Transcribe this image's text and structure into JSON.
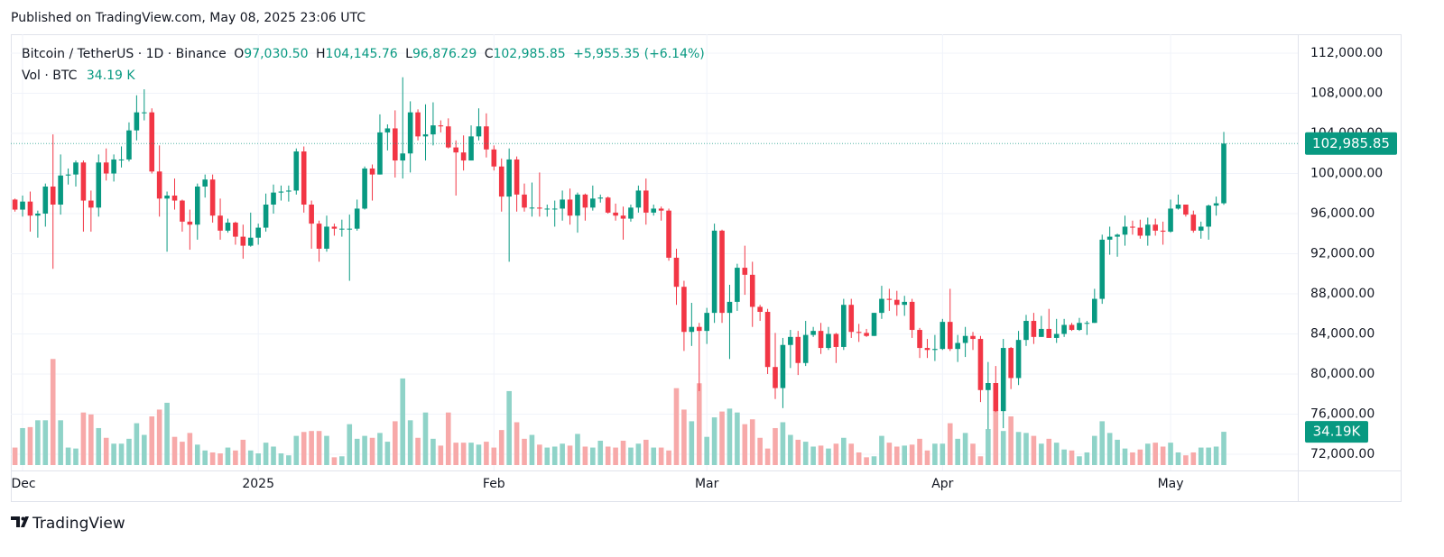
{
  "published": "Published on TradingView.com, May 08, 2025 23:06 UTC",
  "header": {
    "symbol": "Bitcoin / TetherUS · 1D · Binance",
    "o": "O",
    "open": "97,030.50",
    "h": "H",
    "high": "104,145.76",
    "l": "L",
    "low": "96,876.29",
    "c": "C",
    "close": "102,985.85",
    "change": "+5,955.35 (+6.14%)",
    "vol": "Vol · BTC",
    "volume": "34.19 K"
  },
  "volume_axis_label": "34.19K",
  "footer": {
    "brand": "TradingView"
  },
  "chart_data": {
    "type": "candlestick",
    "up_color": "#089981",
    "down_color": "#f23645",
    "up_volume_color": "#8fd3c8",
    "down_volume_color": "#f7a9a9",
    "grid": true,
    "ylim": [
      70380,
      113890
    ],
    "yticks": [
      {
        "value": 72000,
        "label": "72,000.00"
      },
      {
        "value": 76000,
        "label": "76,000.00"
      },
      {
        "value": 80000,
        "label": "80,000.00"
      },
      {
        "value": 84000,
        "label": "84,000.00"
      },
      {
        "value": 88000,
        "label": "88,000.00"
      },
      {
        "value": 92000,
        "label": "92,000.00"
      },
      {
        "value": 96000,
        "label": "96,000.00"
      },
      {
        "value": 100000,
        "label": "100,000.00"
      },
      {
        "value": 104000,
        "label": "104,000.00"
      },
      {
        "value": 108000,
        "label": "108,000.00"
      },
      {
        "value": 112000,
        "label": "112,000.00"
      }
    ],
    "volume_lim": [
      0,
      200
    ],
    "xticks": [
      {
        "value": 1,
        "label": "Dec"
      },
      {
        "value": 32,
        "label": "2025"
      },
      {
        "value": 63,
        "label": "Feb"
      },
      {
        "value": 91,
        "label": "Mar"
      },
      {
        "value": 122,
        "label": "Apr"
      },
      {
        "value": 152,
        "label": "May"
      }
    ],
    "open": [
      97400,
      96400,
      97200,
      95800,
      96000,
      98700,
      96900,
      99800,
      99900,
      101100,
      97300,
      96600,
      101100,
      100000,
      101400,
      101400,
      104300,
      106100,
      106100,
      100200,
      97500,
      97800,
      97300,
      95200,
      94900,
      98700,
      99400,
      95800,
      94300,
      95100,
      93700,
      92800,
      93600,
      94600,
      96900,
      98100,
      98200,
      98300,
      102200,
      96900,
      95000,
      92500,
      94700,
      94500,
      94500,
      94500,
      96500,
      100500,
      99900,
      104100,
      104500,
      101300,
      102000,
      106100,
      103700,
      103900,
      104800,
      104700,
      102600,
      102100,
      101300,
      103700,
      104700,
      102400,
      100700,
      97700,
      101400,
      97900,
      96600,
      96600,
      96500,
      96500,
      96500,
      97400,
      95800,
      97900,
      96600,
      97500,
      97600,
      96100,
      95800,
      95500,
      96600,
      98300,
      96100,
      96500,
      96300,
      91600,
      88700,
      84200,
      84700,
      84300,
      86100,
      94300,
      86100,
      87200,
      90600,
      89900,
      86700,
      86200,
      80700,
      78600,
      82900,
      83700,
      81100,
      83900,
      84300,
      82600,
      84000,
      82700,
      86900,
      84200,
      84100,
      83800,
      86100,
      87500,
      87400,
      86900,
      87200,
      84400,
      82600,
      82400,
      82500,
      85200,
      82500,
      83100,
      83800,
      83500,
      78400,
      79100,
      76300,
      82600,
      79600,
      83400,
      85300,
      83700,
      84500,
      83600,
      84000,
      84900,
      84400,
      85100,
      85100,
      87500,
      93400,
      93700,
      93900,
      94700,
      94600,
      93800,
      94900,
      94300,
      94200,
      96500,
      96900,
      95900,
      94300,
      94700,
      96800,
      97030.5
    ],
    "high": [
      97500,
      97800,
      98200,
      96300,
      99000,
      103900,
      101900,
      100500,
      101300,
      101300,
      98300,
      101900,
      102500,
      101900,
      102700,
      105100,
      107800,
      108400,
      106500,
      102800,
      98200,
      99500,
      97400,
      96400,
      99000,
      99900,
      99900,
      97500,
      95500,
      95200,
      94900,
      96100,
      95000,
      98000,
      98900,
      98800,
      98800,
      102500,
      102700,
      97300,
      95300,
      95800,
      95000,
      95400,
      95900,
      97400,
      100700,
      100900,
      105900,
      104900,
      106300,
      109600,
      107200,
      106400,
      106900,
      107100,
      105300,
      105500,
      103300,
      103800,
      104800,
      106500,
      106000,
      102800,
      101500,
      102500,
      101700,
      99000,
      99100,
      100100,
      96900,
      97300,
      98300,
      98500,
      98100,
      98000,
      98800,
      97900,
      97700,
      97000,
      96700,
      96900,
      98800,
      99500,
      96900,
      96700,
      96500,
      92500,
      89300,
      87100,
      85100,
      86600,
      95000,
      94400,
      88900,
      91000,
      92800,
      91200,
      86900,
      86500,
      84100,
      83600,
      84400,
      84300,
      85300,
      84700,
      85100,
      84700,
      84100,
      87500,
      87500,
      85000,
      84500,
      86100,
      88800,
      88500,
      88300,
      87800,
      87500,
      84600,
      83500,
      83900,
      85500,
      88500,
      83900,
      84700,
      84200,
      83800,
      81200,
      80800,
      83500,
      82700,
      84300,
      85900,
      86100,
      85800,
      86500,
      85500,
      85500,
      85100,
      85600,
      85300,
      88500,
      93900,
      94700,
      94000,
      95800,
      95300,
      95400,
      95600,
      95500,
      95200,
      97400,
      97900,
      96900,
      96300,
      95200,
      96900,
      97700,
      104145.76
    ],
    "low": [
      96200,
      95700,
      94200,
      93600,
      94700,
      90500,
      95900,
      98900,
      98700,
      94200,
      94200,
      95700,
      99300,
      99200,
      100600,
      101200,
      103300,
      105300,
      100000,
      95700,
      92200,
      96400,
      94200,
      92400,
      93400,
      97600,
      95100,
      93400,
      94100,
      92900,
      91500,
      92700,
      92900,
      94200,
      96000,
      97300,
      97200,
      97900,
      96100,
      92500,
      91200,
      92200,
      93800,
      93700,
      89300,
      94300,
      96400,
      97300,
      99900,
      102300,
      99600,
      99500,
      100100,
      103300,
      101300,
      102800,
      104100,
      102500,
      97800,
      100300,
      101300,
      103300,
      101600,
      100300,
      96200,
      91200,
      96200,
      96200,
      95700,
      95700,
      95700,
      94700,
      95300,
      94900,
      94100,
      95300,
      96300,
      97100,
      96000,
      95300,
      93400,
      95200,
      96100,
      94900,
      95800,
      95300,
      91300,
      86900,
      82300,
      82800,
      78300,
      83000,
      85100,
      85100,
      81500,
      86300,
      87900,
      84700,
      85300,
      80000,
      77500,
      76600,
      80600,
      79900,
      80800,
      83700,
      82000,
      82400,
      81100,
      82400,
      83600,
      83200,
      83700,
      83800,
      85500,
      86300,
      85800,
      85800,
      83600,
      81600,
      81600,
      81300,
      82400,
      82300,
      81200,
      81700,
      82400,
      77200,
      74500,
      76200,
      74600,
      78500,
      78900,
      82800,
      83000,
      83700,
      83600,
      83100,
      83700,
      84300,
      84300,
      83900,
      85100,
      87000,
      91900,
      91700,
      92800,
      93900,
      93500,
      92800,
      93800,
      92900,
      94100,
      96400,
      95700,
      94100,
      93500,
      93400,
      95800,
      96876.29
    ],
    "close": [
      96400,
      97200,
      95800,
      96000,
      98700,
      96900,
      99800,
      99900,
      101100,
      97300,
      96600,
      101100,
      100000,
      101400,
      101400,
      104300,
      106100,
      106100,
      100200,
      97500,
      97800,
      97300,
      95200,
      94900,
      98700,
      99400,
      95800,
      94300,
      95100,
      93700,
      92800,
      93600,
      94600,
      96900,
      98100,
      98200,
      98300,
      102200,
      96900,
      95000,
      92500,
      94700,
      94500,
      94500,
      94500,
      96500,
      100500,
      99900,
      104100,
      104500,
      101300,
      102000,
      106100,
      103700,
      103900,
      104800,
      104700,
      102600,
      102100,
      101300,
      103700,
      104700,
      102400,
      100700,
      97700,
      101400,
      97900,
      96600,
      96600,
      96500,
      96500,
      96500,
      97400,
      95800,
      97900,
      96600,
      97500,
      97600,
      96100,
      95800,
      95500,
      96600,
      98300,
      96100,
      96500,
      96300,
      91600,
      88700,
      84200,
      84700,
      84300,
      86100,
      94300,
      86100,
      87200,
      90600,
      89900,
      86700,
      86200,
      80700,
      78600,
      82900,
      83700,
      81100,
      83900,
      84300,
      82600,
      84000,
      82700,
      86900,
      84200,
      84100,
      83800,
      86100,
      87500,
      87400,
      86900,
      87200,
      84400,
      82600,
      82400,
      82500,
      85200,
      82500,
      83100,
      83800,
      83500,
      78400,
      79100,
      76300,
      82600,
      79600,
      83400,
      85300,
      83700,
      84500,
      83600,
      84000,
      84900,
      84400,
      85100,
      85100,
      87500,
      93400,
      93700,
      93900,
      94700,
      94600,
      93800,
      94900,
      94300,
      94200,
      96500,
      96900,
      95900,
      94300,
      94700,
      96800,
      97030.5,
      102985.85
    ],
    "volume": [
      18,
      38,
      39,
      46,
      46,
      109,
      46,
      18,
      17,
      54,
      52,
      38,
      28,
      22,
      22,
      27,
      43,
      31,
      50,
      57,
      64,
      29,
      24,
      33,
      21,
      15,
      13,
      12,
      18,
      15,
      26,
      15,
      12,
      23,
      19,
      12,
      10,
      30,
      34,
      35,
      35,
      30,
      8,
      9,
      42,
      27,
      30,
      28,
      33,
      24,
      45,
      89,
      46,
      28,
      54,
      27,
      20,
      54,
      23,
      23,
      23,
      21,
      24,
      18,
      36,
      76,
      44,
      27,
      31,
      21,
      18,
      19,
      22,
      20,
      32,
      19,
      18,
      25,
      19,
      18,
      25,
      18,
      22,
      26,
      18,
      18,
      15,
      79,
      57,
      45,
      84,
      29,
      49,
      55,
      58,
      54,
      42,
      47,
      28,
      17,
      38,
      44,
      31,
      26,
      24,
      19,
      20,
      17,
      22,
      28,
      22,
      13,
      8,
      9,
      30,
      23,
      19,
      20,
      21,
      27,
      15,
      22,
      22,
      43,
      27,
      33,
      22,
      9,
      37,
      57,
      35,
      50,
      34,
      33,
      30,
      22,
      27,
      23,
      16,
      15,
      9,
      13,
      30,
      45,
      33,
      26,
      17,
      13,
      16,
      22,
      23,
      19,
      23,
      13,
      10,
      13,
      18,
      18,
      19,
      34.19
    ]
  }
}
